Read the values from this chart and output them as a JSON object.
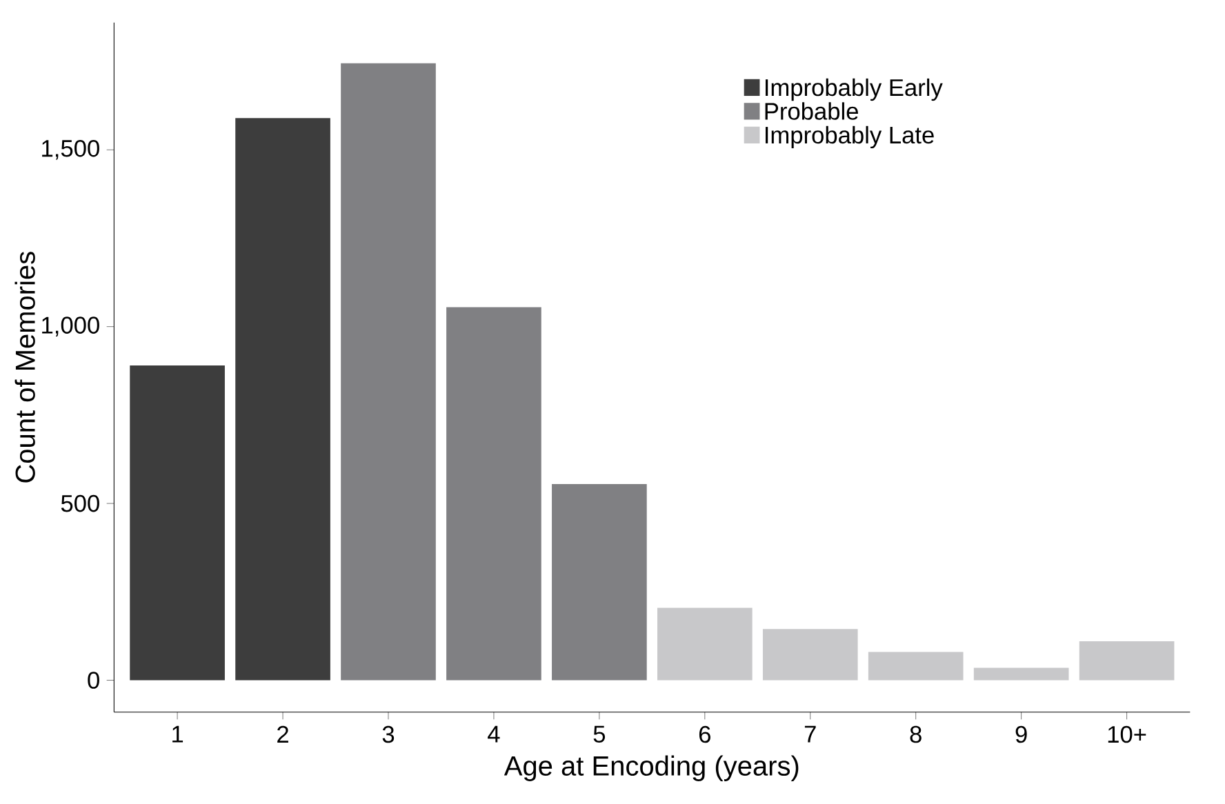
{
  "chart_data": {
    "type": "bar",
    "xlabel": "Age at Encoding (years)",
    "ylabel": "Count of Memories",
    "categories": [
      "1",
      "2",
      "3",
      "4",
      "5",
      "6",
      "7",
      "8",
      "9",
      "10+"
    ],
    "series": [
      {
        "name": "Improbably Early",
        "color": "#3d3d3d",
        "values": [
          890,
          1590,
          null,
          null,
          null,
          null,
          null,
          null,
          null,
          null
        ]
      },
      {
        "name": "Probable",
        "color": "#808083",
        "values": [
          null,
          null,
          1745,
          1055,
          555,
          null,
          null,
          null,
          null,
          null
        ]
      },
      {
        "name": "Improbably Late",
        "color": "#c8c8ca",
        "values": [
          null,
          null,
          null,
          null,
          null,
          205,
          145,
          80,
          35,
          110
        ]
      }
    ],
    "ylim": [
      -90,
      1860
    ],
    "yticks": [
      0,
      {
        "value": 500,
        "label": "500"
      },
      {
        "value": 1000,
        "label": "1,000"
      },
      {
        "value": 1500,
        "label": "1,500"
      }
    ],
    "grid": false,
    "legend": "top right"
  }
}
